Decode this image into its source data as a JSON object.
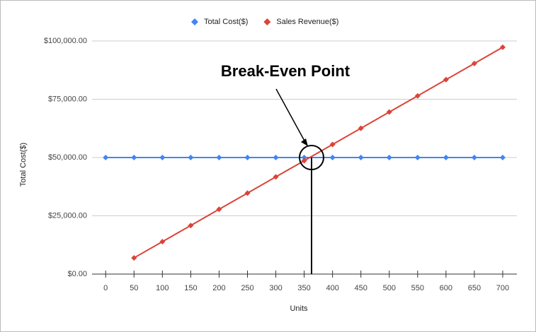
{
  "chart_data": {
    "type": "line",
    "x_label": "Units",
    "y_label": "Total Cost($)",
    "x": [
      0,
      50,
      100,
      150,
      200,
      250,
      300,
      350,
      400,
      450,
      500,
      550,
      600,
      650,
      700
    ],
    "series": [
      {
        "name": "Total Cost($)",
        "color": "#4285f4",
        "values": [
          50000,
          50000,
          50000,
          50000,
          50000,
          50000,
          50000,
          50000,
          50000,
          50000,
          50000,
          50000,
          50000,
          50000,
          50000
        ]
      },
      {
        "name": "Sales Revenue($)",
        "color": "#db4437",
        "values": [
          null,
          6950,
          13900,
          20850,
          27800,
          34750,
          41700,
          48650,
          55600,
          62550,
          69500,
          76450,
          83400,
          90350,
          97300
        ]
      }
    ],
    "xlim": [
      -24,
      725
    ],
    "xticks": [
      0,
      50,
      100,
      150,
      200,
      250,
      300,
      350,
      400,
      450,
      500,
      550,
      600,
      650,
      700
    ],
    "ylim": [
      0,
      100000
    ],
    "yticks": [
      {
        "value": 0,
        "label": "$0.00"
      },
      {
        "value": 25000,
        "label": "$25,000.00"
      },
      {
        "value": 50000,
        "label": "$50,000.00"
      },
      {
        "value": 75000,
        "label": "$75,000.00"
      },
      {
        "value": 100000,
        "label": "$100,000.00"
      }
    ],
    "grid": true,
    "legend": "top",
    "annotation": {
      "text": "Break-Even Point",
      "x": 363,
      "y": 50000
    }
  }
}
